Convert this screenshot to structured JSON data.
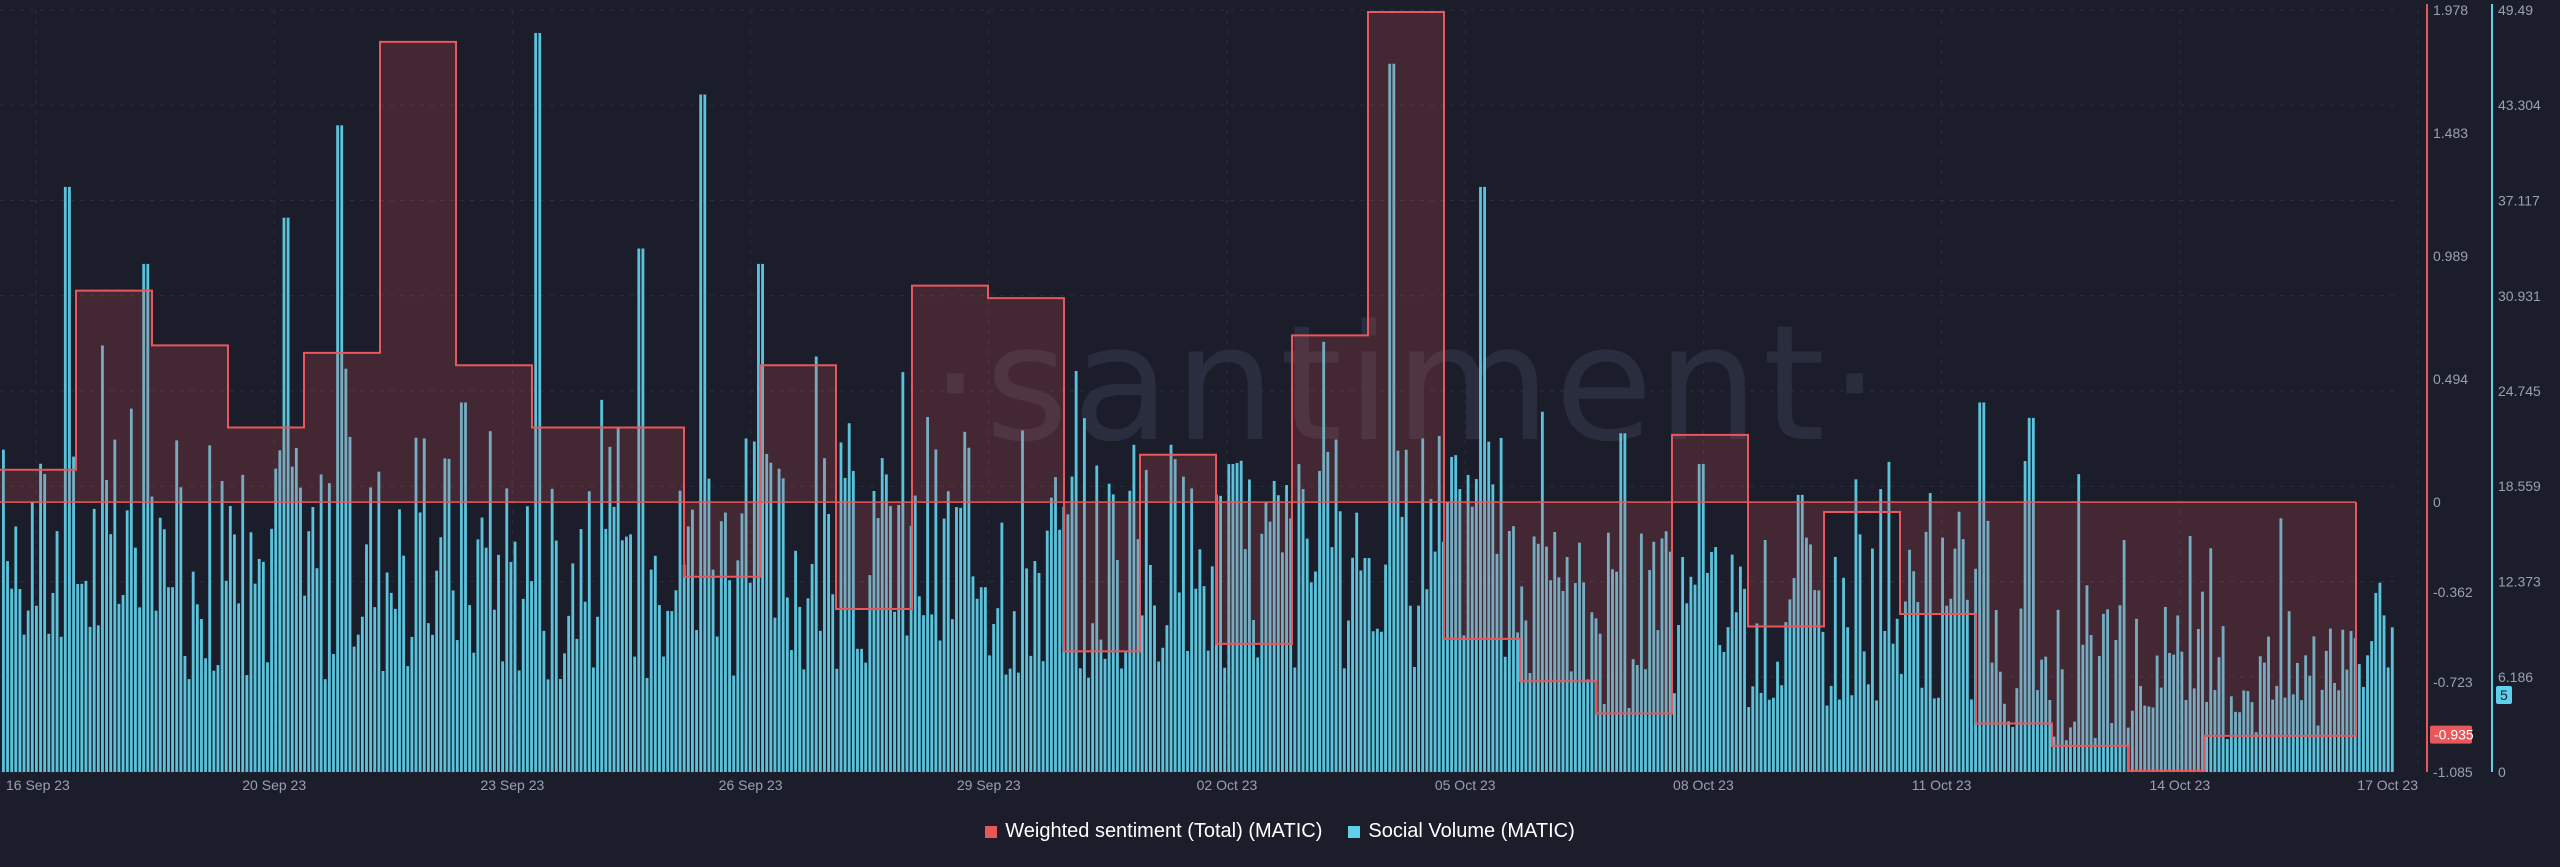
{
  "watermark": "·santiment·",
  "legend": [
    {
      "label": "Weighted sentiment (Total) (MATIC)",
      "color": "#e8575b"
    },
    {
      "label": "Social Volume (MATIC)",
      "color": "#5fd0e9"
    }
  ],
  "chart_data": {
    "type": "bar",
    "x_ticks": [
      "16 Sep 23",
      "20 Sep 23",
      "23 Sep 23",
      "26 Sep 23",
      "29 Sep 23",
      "02 Oct 23",
      "05 Oct 23",
      "08 Oct 23",
      "11 Oct 23",
      "14 Oct 23",
      "17 Oct 23"
    ],
    "y_left": {
      "ticks": [
        "1.978",
        "1.483",
        "0.989",
        "0.494",
        "0",
        "-0.362",
        "-0.723",
        "-1.085"
      ],
      "ylim": [
        -1.085,
        1.978
      ],
      "last_value": "-0.935"
    },
    "y_right": {
      "ticks": [
        "49.49",
        "43.304",
        "37.117",
        "30.931",
        "24.745",
        "18.559",
        "12.373",
        "6.186",
        "0"
      ],
      "ylim": [
        0,
        49.49
      ],
      "last_value": "5"
    },
    "series": [
      {
        "name": "Weighted sentiment (Total) (MATIC)",
        "kind": "step-area",
        "color": "#e8575b",
        "x": [
          "2023-09-16",
          "2023-09-17",
          "2023-09-18",
          "2023-09-19",
          "2023-09-20",
          "2023-09-21",
          "2023-09-22",
          "2023-09-23",
          "2023-09-24",
          "2023-09-25",
          "2023-09-26",
          "2023-09-27",
          "2023-09-28",
          "2023-09-29",
          "2023-09-30",
          "2023-10-01",
          "2023-10-02",
          "2023-10-03",
          "2023-10-04",
          "2023-10-05",
          "2023-10-06",
          "2023-10-07",
          "2023-10-08",
          "2023-10-09",
          "2023-10-10",
          "2023-10-11",
          "2023-10-12",
          "2023-10-13",
          "2023-10-14",
          "2023-10-15",
          "2023-10-16"
        ],
        "values": [
          0.13,
          0.85,
          0.63,
          0.3,
          0.6,
          1.85,
          0.55,
          0.3,
          0.3,
          -0.3,
          0.55,
          -0.43,
          0.87,
          0.82,
          -0.6,
          0.19,
          -0.57,
          0.67,
          1.97,
          -0.55,
          -0.72,
          -0.85,
          0.27,
          -0.5,
          -0.04,
          -0.45,
          -0.89,
          -0.98,
          -1.08,
          -0.94,
          -0.94
        ]
      },
      {
        "name": "Social Volume (MATIC)",
        "kind": "bar",
        "color": "#5fd0e9",
        "x_range": [
          "2023-09-16",
          "2023-10-17"
        ],
        "note_generated": false
      }
    ]
  }
}
